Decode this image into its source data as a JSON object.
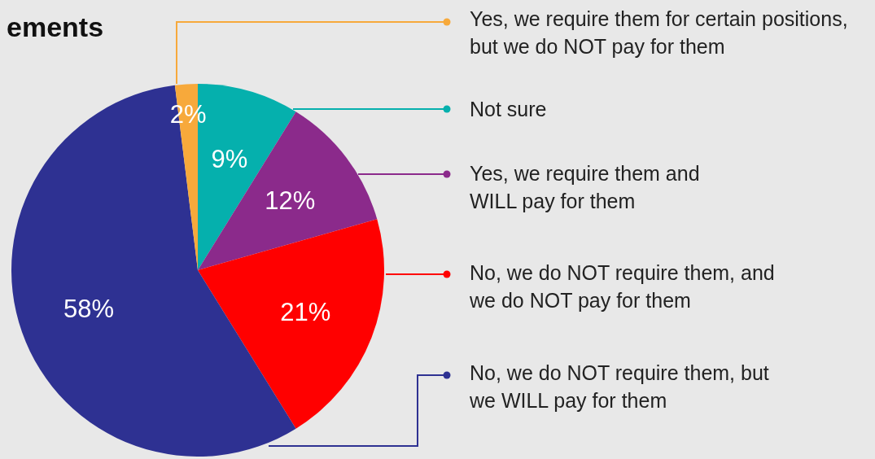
{
  "chart_data": {
    "type": "pie",
    "title": "ements",
    "categories": [
      "Not sure",
      "Yes, we require them and WILL pay for them",
      "No, we do NOT require them, and we do NOT pay for them",
      "No, we do NOT require them, but we WILL pay for them",
      "Yes, we require them for certain positions, but we do NOT pay for them"
    ],
    "values": [
      9,
      12,
      21,
      58,
      2
    ],
    "colors": [
      "#05b0ad",
      "#8b2a8b",
      "#ff0000",
      "#2e3192",
      "#f7a93b"
    ],
    "value_labels": [
      "9%",
      "12%",
      "21%",
      "58%",
      "2%"
    ],
    "legend": "right"
  }
}
